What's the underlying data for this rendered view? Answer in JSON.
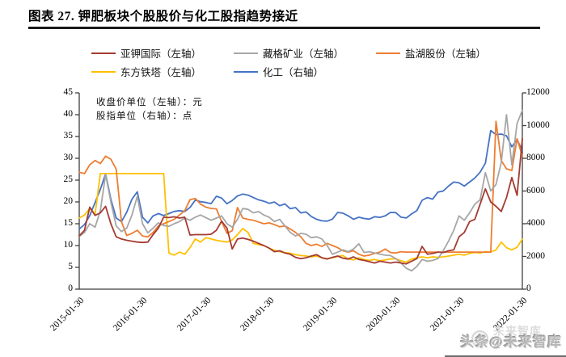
{
  "page": {
    "title": "图表 27. 钾肥板块个股股价与化工股指趋势接近",
    "watermark": "头条@未来智库",
    "watermark_ghost": "未来智库"
  },
  "chart_data": {
    "type": "line",
    "title": "钾肥板块个股股价与化工股指趋势接近",
    "annotation": [
      "收盘价单位（左轴）：元",
      "股指单位（右轴）：点"
    ],
    "x_axis": {
      "start": "2015-01",
      "interval": "monthly",
      "points_per_series": 85,
      "tick_labels": [
        "2015-01-30",
        "2016-01-30",
        "2017-01-30",
        "2018-01-30",
        "2019-01-30",
        "2020-01-30",
        "2021-01-30",
        "2022-01-30"
      ]
    },
    "left_axis": {
      "min": 0,
      "max": 45,
      "step": 5,
      "unit": "元",
      "tick_labels": [
        "45",
        "40",
        "35",
        "30",
        "25",
        "20",
        "15",
        "10",
        "5",
        "0"
      ]
    },
    "right_axis": {
      "min": 0,
      "max": 12000,
      "step": 2000,
      "unit": "点",
      "tick_labels": [
        "12000",
        "10000",
        "8000",
        "6000",
        "4000",
        "2000",
        "0"
      ]
    },
    "legend_rows": [
      [
        0,
        1,
        2
      ],
      [
        3,
        4
      ]
    ],
    "series": [
      {
        "name": "亚钾国际（左轴）",
        "axis": "left",
        "color": "#A43B32",
        "values": [
          12.2,
          13.5,
          18.8,
          16.9,
          17.5,
          19.0,
          15.0,
          12.0,
          11.5,
          11.2,
          11.0,
          10.8,
          10.7,
          10.8,
          12.5,
          14.0,
          16.5,
          16.4,
          16.6,
          16.3,
          16.5,
          12.4,
          12.5,
          12.5,
          12.5,
          12.6,
          13.5,
          15.6,
          14.0,
          9.2,
          11.5,
          11.7,
          11.4,
          11.0,
          10.5,
          10.0,
          9.4,
          8.6,
          8.8,
          8.3,
          8.0,
          7.3,
          7.0,
          7.2,
          7.6,
          7.9,
          7.2,
          6.9,
          7.3,
          7.6,
          7.1,
          6.9,
          7.4,
          6.8,
          6.6,
          6.3,
          6.0,
          6.4,
          6.2,
          6.0,
          6.2,
          6.0,
          5.8,
          6.4,
          7.0,
          9.8,
          8.0,
          8.2,
          8.5,
          8.4,
          8.8,
          9.0,
          12.0,
          13.0,
          15.5,
          16.0,
          19.5,
          23.0,
          20.0,
          19.0,
          17.8,
          21.0,
          25.6,
          21.5,
          34.5
        ]
      },
      {
        "name": "藏格矿业（左轴）",
        "axis": "left",
        "color": "#A6A6A6",
        "values": [
          12.1,
          13.0,
          15.0,
          14.2,
          18.0,
          26.3,
          20.0,
          14.5,
          13.2,
          14.0,
          17.0,
          21.3,
          15.0,
          12.9,
          14.0,
          15.2,
          14.6,
          14.4,
          15.0,
          15.5,
          16.3,
          15.8,
          16.5,
          17.0,
          16.4,
          15.8,
          16.3,
          16.8,
          15.0,
          14.2,
          16.0,
          18.5,
          18.3,
          17.5,
          17.8,
          17.0,
          16.5,
          15.5,
          16.0,
          14.5,
          13.0,
          12.2,
          12.8,
          12.6,
          11.8,
          12.0,
          11.5,
          10.0,
          8.0,
          8.5,
          9.0,
          8.6,
          9.2,
          10.4,
          8.4,
          8.6,
          8.3,
          8.0,
          7.8,
          7.7,
          7.0,
          6.0,
          4.8,
          4.2,
          5.2,
          6.8,
          6.4,
          6.6,
          7.0,
          8.8,
          11.0,
          13.5,
          16.8,
          15.8,
          17.5,
          19.5,
          20.5,
          26.7,
          22.5,
          24.0,
          29.0,
          40.0,
          28.5,
          38.0,
          41.0
        ]
      },
      {
        "name": "盐湖股份（左轴）",
        "axis": "left",
        "color": "#ED7D31",
        "values": [
          26.8,
          26.5,
          28.5,
          29.5,
          28.8,
          30.5,
          29.8,
          27.5,
          15.5,
          12.3,
          12.8,
          13.5,
          12.2,
          12.0,
          13.0,
          14.5,
          15.0,
          15.5,
          16.0,
          17.0,
          18.0,
          20.5,
          20.8,
          19.5,
          18.8,
          18.5,
          18.4,
          15.5,
          12.8,
          13.4,
          18.7,
          16.3,
          16.0,
          15.8,
          15.4,
          15.0,
          15.2,
          14.8,
          14.3,
          14.5,
          13.8,
          13.0,
          12.0,
          10.5,
          10.0,
          10.3,
          9.8,
          10.5,
          10.0,
          9.5,
          8.8,
          8.5,
          8.8,
          8.0,
          7.6,
          7.8,
          8.2,
          8.5,
          9.2,
          8.4,
          8.3,
          8.6,
          8.5,
          8.5,
          8.5,
          8.5,
          8.5,
          8.5,
          8.5,
          8.5,
          8.5,
          8.5,
          8.5,
          8.5,
          8.5,
          8.5,
          8.5,
          8.5,
          8.5,
          38.5,
          29.5,
          27.6,
          27.2,
          34.5,
          30.5
        ]
      },
      {
        "name": "东方铁塔（左轴）",
        "axis": "left",
        "color": "#FFC000",
        "values": [
          16.3,
          17.0,
          18.5,
          17.2,
          26.5,
          26.5,
          26.5,
          26.5,
          26.5,
          26.5,
          26.5,
          26.5,
          26.5,
          26.5,
          26.5,
          26.5,
          26.5,
          8.3,
          7.8,
          8.5,
          8.0,
          9.5,
          11.5,
          10.8,
          11.8,
          11.5,
          11.2,
          11.0,
          10.8,
          11.3,
          12.5,
          13.9,
          13.0,
          10.5,
          10.2,
          10.0,
          9.4,
          8.9,
          8.6,
          8.4,
          8.2,
          7.9,
          7.7,
          7.6,
          7.4,
          7.6,
          7.2,
          7.0,
          7.2,
          7.5,
          7.7,
          6.9,
          6.7,
          7.2,
          6.8,
          6.6,
          6.8,
          6.5,
          6.7,
          6.9,
          7.0,
          6.5,
          6.2,
          6.9,
          7.2,
          7.4,
          7.2,
          7.4,
          7.3,
          7.4,
          7.6,
          7.8,
          8.0,
          7.8,
          8.2,
          8.4,
          8.3,
          8.6,
          8.5,
          9.0,
          10.8,
          9.5,
          9.0,
          9.6,
          11.5
        ]
      },
      {
        "name": "化工（右轴）",
        "axis": "right",
        "color": "#4472C4",
        "values": [
          3680,
          3950,
          4500,
          5300,
          6100,
          7050,
          5500,
          4350,
          4130,
          4700,
          5500,
          5950,
          4400,
          4050,
          4480,
          4620,
          4500,
          4620,
          4750,
          4800,
          4750,
          5000,
          5440,
          5350,
          5300,
          5230,
          5680,
          5570,
          5220,
          5420,
          5700,
          5810,
          5750,
          5600,
          5460,
          5380,
          5250,
          5330,
          5100,
          5210,
          4920,
          4990,
          4660,
          4720,
          4440,
          4270,
          4180,
          4160,
          4280,
          4690,
          4640,
          4480,
          4270,
          4400,
          4320,
          4280,
          4430,
          4390,
          4480,
          4690,
          4680,
          4400,
          4350,
          4600,
          4800,
          5430,
          5600,
          5500,
          5930,
          6000,
          6300,
          6550,
          6500,
          6300,
          6550,
          6800,
          7150,
          7700,
          9700,
          9450,
          9480,
          9380,
          8700,
          9150,
          8450
        ]
      }
    ]
  }
}
